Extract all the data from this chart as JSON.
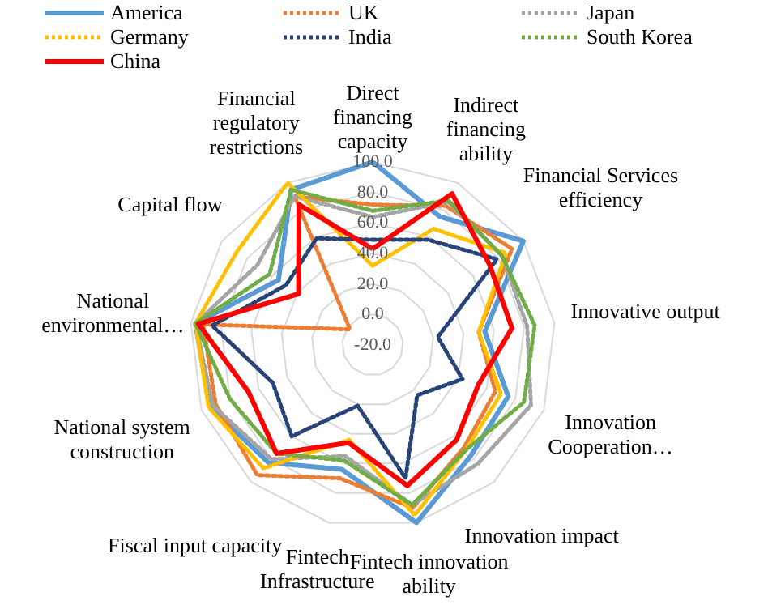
{
  "chart_data": {
    "type": "radar",
    "categories": [
      "Direct financing capacity",
      "Indirect financing ability",
      "Financial Services efficiency",
      "Innovative output",
      "Innovation Cooperation…",
      "Innovation impact",
      "Fintech innovation ability",
      "Fintech Infrastructure",
      "Fiscal input capacity",
      "National system construction",
      "National environmental…",
      "Capital flow",
      "Financial regulatory restrictions"
    ],
    "ylim": [
      -20,
      100
    ],
    "yticks": [
      {
        "value": -20,
        "label": "-20.0"
      },
      {
        "value": 0,
        "label": "0.0"
      },
      {
        "value": 20,
        "label": "20.0"
      },
      {
        "value": 40,
        "label": "40.0"
      },
      {
        "value": 60,
        "label": "60.0"
      },
      {
        "value": 80,
        "label": "80.0"
      },
      {
        "value": 100,
        "label": "100.0"
      }
    ],
    "grid": true,
    "legend": "top",
    "series": [
      {
        "name": "America",
        "color": "#5b9bd5",
        "line_style": "solid",
        "values": [
          100,
          75,
          100,
          54,
          75,
          77,
          100,
          64,
          83,
          94,
          97,
          55,
          95
        ]
      },
      {
        "name": "UK",
        "color": "#ed7d31",
        "line_style": "dotted",
        "values": [
          72,
          83,
          91,
          50,
          66,
          70,
          90,
          70,
          94,
          90,
          92,
          -2,
          90
        ]
      },
      {
        "name": "Japan",
        "color": "#a5a5a5",
        "line_style": "dotted",
        "values": [
          64,
          86,
          83,
          82,
          91,
          84,
          88,
          55,
          80,
          92,
          97,
          72,
          90
        ]
      },
      {
        "name": "Germany",
        "color": "#ffc000",
        "line_style": "dotted",
        "values": [
          32,
          66,
          86,
          50,
          70,
          72,
          95,
          44,
          88,
          95,
          97,
          88,
          100
        ]
      },
      {
        "name": "India",
        "color": "#264478",
        "line_style": "dotted",
        "values": [
          49,
          58,
          79,
          23,
          43,
          24,
          70,
          21,
          60,
          50,
          86,
          49,
          59
        ]
      },
      {
        "name": "South Korea",
        "color": "#70ad47",
        "line_style": "dotted",
        "values": [
          68,
          87,
          83,
          87,
          86,
          72,
          88,
          58,
          75,
          80,
          97,
          62,
          95
        ]
      },
      {
        "name": "China",
        "color": "#ff0000",
        "line_style": "solid",
        "values": [
          43,
          92,
          73,
          72,
          54,
          63,
          75,
          46,
          75,
          67,
          95,
          39,
          84
        ]
      }
    ]
  }
}
